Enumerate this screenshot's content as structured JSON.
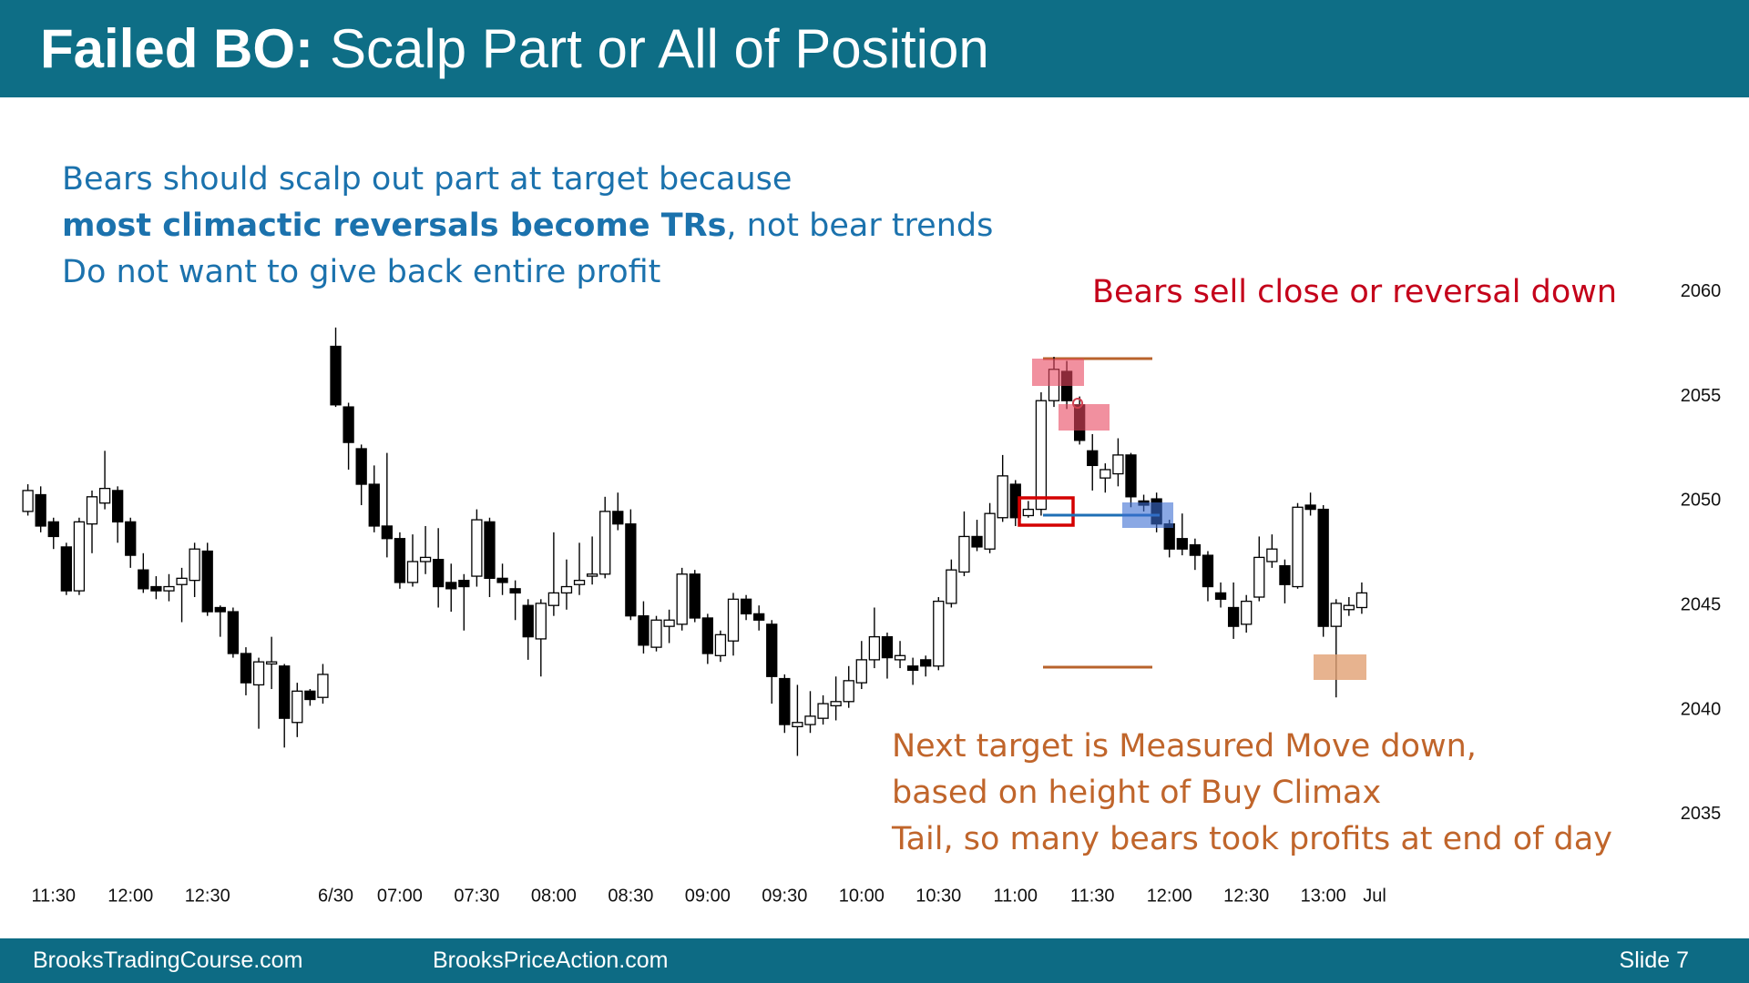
{
  "header": {
    "title_bold": "Failed BO:",
    "title_rest": "Scalp Part or All of Position"
  },
  "notes": {
    "blue": [
      {
        "parts": [
          "Bears should scalp out part at target because"
        ]
      },
      {
        "bold": "most climactic reversals become TRs",
        "parts": [
          ", not bear trends"
        ]
      },
      {
        "parts": [
          "Do not want to give back entire profit"
        ]
      }
    ],
    "red": "Bears sell close or reversal down",
    "orange": [
      "Next target is Measured Move down,",
      "based on height of Buy Climax",
      "Tail, so many bears took profits at end of day"
    ]
  },
  "footer": {
    "left": "BrooksTradingCourse.com",
    "middle": "BrooksPriceAction.com",
    "right": "Slide  7"
  },
  "chart_data": {
    "type": "candlestick",
    "categories": [
      null,
      null,
      "11:30",
      null,
      null,
      null,
      null,
      null,
      "12:00",
      null,
      null,
      null,
      null,
      null,
      "12:30",
      null,
      null,
      null,
      null,
      null,
      null,
      null,
      null,
      null,
      "6/30",
      null,
      null,
      null,
      null,
      "07:00",
      null,
      null,
      null,
      null,
      null,
      "07:30",
      null,
      null,
      null,
      null,
      null,
      "08:00",
      null,
      null,
      null,
      null,
      null,
      "08:30",
      null,
      null,
      null,
      null,
      null,
      "09:00",
      null,
      null,
      null,
      null,
      null,
      "09:30",
      null,
      null,
      null,
      null,
      null,
      "10:00",
      null,
      null,
      null,
      null,
      null,
      "10:30",
      null,
      null,
      null,
      null,
      null,
      "11:00",
      null,
      null,
      null,
      null,
      null,
      "11:30",
      null,
      null,
      null,
      null,
      null,
      "12:00",
      null,
      null,
      null,
      null,
      null,
      "12:30",
      null,
      null,
      null,
      null,
      null,
      "13:00",
      null,
      null,
      null,
      "Jul"
    ],
    "open": [
      2049.5,
      2050.3,
      2049,
      2047.8,
      2045.7,
      2048.9,
      2049.9,
      2050.5,
      2049,
      2046.7,
      2045.9,
      2045.7,
      2046,
      2046.2,
      2047.6,
      2044.9,
      2044.7,
      2042.7,
      2041.2,
      2042.2,
      2042.1,
      2039.4,
      2040.9,
      2040.6,
      2057.4,
      2054.5,
      2052.5,
      2050.8,
      2048.8,
      2048.2,
      2046.1,
      2047.1,
      2047.2,
      2046.1,
      2046.2,
      2046.4,
      2049,
      2046.3,
      2045.8,
      2045,
      2043.4,
      2045,
      2045.6,
      2046,
      2046.4,
      2046.5,
      2049.5,
      2048.9,
      2044.5,
      2043,
      2044,
      2044.1,
      2046.5,
      2044.4,
      2042.6,
      2043.3,
      2045.3,
      2044.6,
      2044.1,
      2041.5,
      2039.2,
      2039.3,
      2039.6,
      2040.2,
      2040.4,
      2041.3,
      2042.4,
      2043.5,
      2042.4,
      2042.1,
      2042.4,
      2042.1,
      2045.1,
      2046.6,
      2048.3,
      2047.7,
      2049.2,
      2050.8,
      2049.3,
      2049.6,
      2054.8,
      2056.2,
      2054.6,
      2052.4,
      2051.1,
      2051.3,
      2052.2,
      2050,
      2050.1,
      2048.9,
      2048.2,
      2047.9,
      2047.4,
      2045.6,
      2044.9,
      2044.1,
      2045.4,
      2047.1,
      2046.9,
      2045.9,
      2049.8,
      2049.6,
      2044,
      2044.8,
      2044.9,
      null
    ],
    "high": [
      2050.8,
      2050.7,
      2049.2,
      2048,
      2049.2,
      2050.5,
      2052.4,
      2050.7,
      2049.2,
      2047.5,
      2046.4,
      2046.5,
      2046.8,
      2048,
      2048,
      2045,
      2044.9,
      2043,
      2042.5,
      2043.5,
      2042.2,
      2041.3,
      2041,
      2042.2,
      2058.3,
      2054.7,
      2052.7,
      2051.7,
      2052.3,
      2048.5,
      2048.4,
      2048.8,
      2048.7,
      2047,
      2046.5,
      2049.6,
      2049.2,
      2047,
      2046.2,
      2045.3,
      2045.3,
      2048.5,
      2047.2,
      2048,
      2048.3,
      2050.2,
      2050.4,
      2049.6,
      2045.2,
      2044.5,
      2044.8,
      2046.8,
      2046.7,
      2044.6,
      2043.8,
      2045.6,
      2045.5,
      2045,
      2044.3,
      2041.7,
      2041.2,
      2040.9,
      2040.7,
      2041.6,
      2042.1,
      2043.3,
      2044.9,
      2043.7,
      2043.3,
      2042.5,
      2042.6,
      2045.4,
      2047.2,
      2049.5,
      2049.1,
      2049.9,
      2052.2,
      2051,
      2050,
      2055.2,
      2056.9,
      2056.7,
      2055,
      2053.2,
      2051.8,
      2053,
      2052.3,
      2050.3,
      2050.4,
      2049.1,
      2049.4,
      2048.2,
      2047.6,
      2046.1,
      2046.1,
      2045.5,
      2048.3,
      2048.4,
      2047.2,
      2049.9,
      2050.4,
      2049.8,
      2045.3,
      2045.4,
      2046.1,
      null
    ],
    "low": [
      2049.3,
      2048.5,
      2047.7,
      2045.5,
      2045.5,
      2047.5,
      2049.6,
      2048,
      2046.8,
      2045.6,
      2045.3,
      2045.2,
      2044.2,
      2045.4,
      2044.5,
      2043.5,
      2042.5,
      2040.7,
      2039.1,
      2041,
      2038.2,
      2038.7,
      2040.2,
      2040.3,
      2054.5,
      2051.5,
      2049.8,
      2048.5,
      2047.3,
      2045.8,
      2045.9,
      2046.5,
      2044.9,
      2044.7,
      2043.8,
      2045.9,
      2045.4,
      2045.5,
      2044.3,
      2042.4,
      2041.6,
      2044.5,
      2044.8,
      2045.5,
      2046,
      2046.3,
      2048.6,
      2044.3,
      2042.7,
      2042.8,
      2043.2,
      2043.8,
      2044.2,
      2042.2,
      2042.3,
      2042.6,
      2044.3,
      2043.8,
      2040.3,
      2038.9,
      2037.8,
      2038.9,
      2039.3,
      2039.5,
      2040.1,
      2041,
      2042,
      2041.5,
      2042,
      2041.2,
      2041.6,
      2041.9,
      2044.9,
      2046.4,
      2047.6,
      2047.5,
      2049,
      2048.8,
      2049.2,
      2049.3,
      2054.5,
      2054.4,
      2052.7,
      2050.5,
      2050.4,
      2050.7,
      2049.7,
      2049.5,
      2048.5,
      2047.3,
      2047.4,
      2046.7,
      2045.2,
      2044.9,
      2043.4,
      2043.7,
      2045.2,
      2046.8,
      2045.1,
      2045.8,
      2049.3,
      2043.5,
      2040.6,
      2044.5,
      2044.6,
      null
    ],
    "close": [
      2050.5,
      2048.8,
      2048.3,
      2045.7,
      2049,
      2050.2,
      2050.6,
      2049,
      2047.4,
      2045.8,
      2045.7,
      2045.9,
      2046.3,
      2047.7,
      2044.7,
      2044.7,
      2042.7,
      2041.3,
      2042.3,
      2042.3,
      2039.6,
      2040.9,
      2040.5,
      2041.7,
      2054.6,
      2052.8,
      2050.8,
      2048.8,
      2048.2,
      2046.1,
      2047.1,
      2047.3,
      2045.9,
      2045.8,
      2045.9,
      2049.1,
      2046.3,
      2046.1,
      2045.6,
      2043.5,
      2045.1,
      2045.6,
      2045.9,
      2046.2,
      2046.5,
      2049.5,
      2048.9,
      2044.5,
      2043.1,
      2044.3,
      2044.3,
      2046.5,
      2044.4,
      2042.7,
      2043.6,
      2045.3,
      2044.6,
      2044.3,
      2041.6,
      2039.3,
      2039.4,
      2039.7,
      2040.3,
      2040.4,
      2041.4,
      2042.4,
      2043.5,
      2042.5,
      2042.6,
      2041.9,
      2042.1,
      2045.2,
      2046.7,
      2048.3,
      2047.8,
      2049.4,
      2051.2,
      2049.2,
      2049.6,
      2054.8,
      2056.3,
      2054.8,
      2052.9,
      2051.7,
      2051.5,
      2052.2,
      2050.2,
      2049.8,
      2048.9,
      2047.7,
      2047.7,
      2047.4,
      2045.9,
      2045.3,
      2044,
      2045.2,
      2047.3,
      2047.7,
      2046,
      2049.7,
      2049.6,
      2044,
      2045.1,
      2045,
      2045.6,
      null
    ],
    "up_color": "#ffffff",
    "down_color": "#000000",
    "ylim": [
      2033,
      2062
    ],
    "yticks": [
      2035,
      2040,
      2045,
      2050,
      2055,
      2060
    ],
    "grid": false
  }
}
